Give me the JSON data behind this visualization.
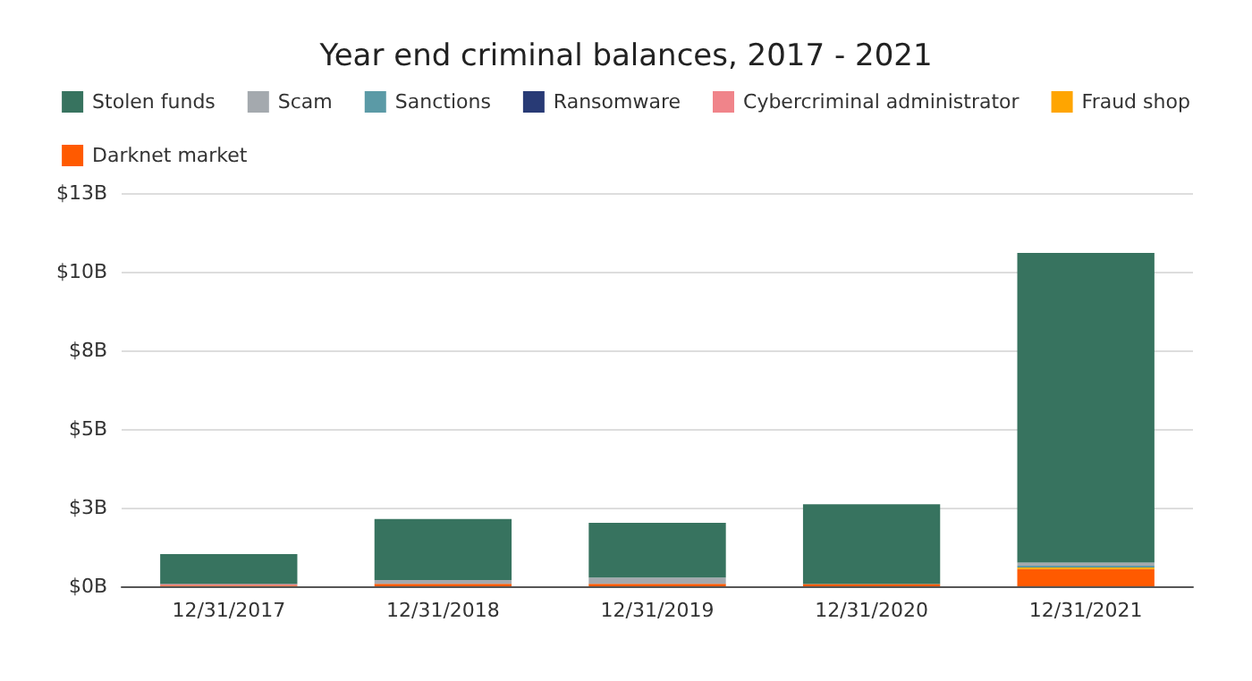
{
  "chart_data": {
    "type": "bar",
    "title": "Year end criminal balances, 2017 - 2021",
    "categories": [
      "12/31/2017",
      "12/31/2018",
      "12/31/2019",
      "12/31/2020",
      "12/31/2021"
    ],
    "stacked": true,
    "series": [
      {
        "name": "Darknet market",
        "color": "#ff5a00",
        "values": [
          0.02,
          0.08,
          0.08,
          0.07,
          0.55
        ]
      },
      {
        "name": "Fraud shop",
        "color": "#ffa500",
        "values": [
          0,
          0,
          0,
          0,
          0.05
        ]
      },
      {
        "name": "Cybercriminal administrator",
        "color": "#f0848a",
        "values": [
          0.05,
          0,
          0,
          0,
          0
        ]
      },
      {
        "name": "Ransomware",
        "color": "#283a75",
        "values": [
          0,
          0,
          0,
          0,
          0
        ]
      },
      {
        "name": "Sanctions",
        "color": "#5b9aa6",
        "values": [
          0,
          0,
          0,
          0,
          0.05
        ]
      },
      {
        "name": "Scam",
        "color": "#a4a9ae",
        "values": [
          null,
          0.12,
          0.2,
          null,
          0.1
        ]
      },
      {
        "name": "Stolen funds",
        "color": "#37735f",
        "values": [
          0.95,
          1.94,
          1.74,
          2.54,
          9.85
        ]
      }
    ],
    "ylim": [
      0,
      12.5
    ],
    "yticks": [
      {
        "value": 0,
        "label": "$0B"
      },
      {
        "value": 2.5,
        "label": "$3B"
      },
      {
        "value": 5,
        "label": "$5B"
      },
      {
        "value": 7.5,
        "label": "$8B"
      },
      {
        "value": 10,
        "label": "$10B"
      },
      {
        "value": 12.5,
        "label": "$13B"
      }
    ],
    "grid": "y",
    "legend": "top"
  }
}
